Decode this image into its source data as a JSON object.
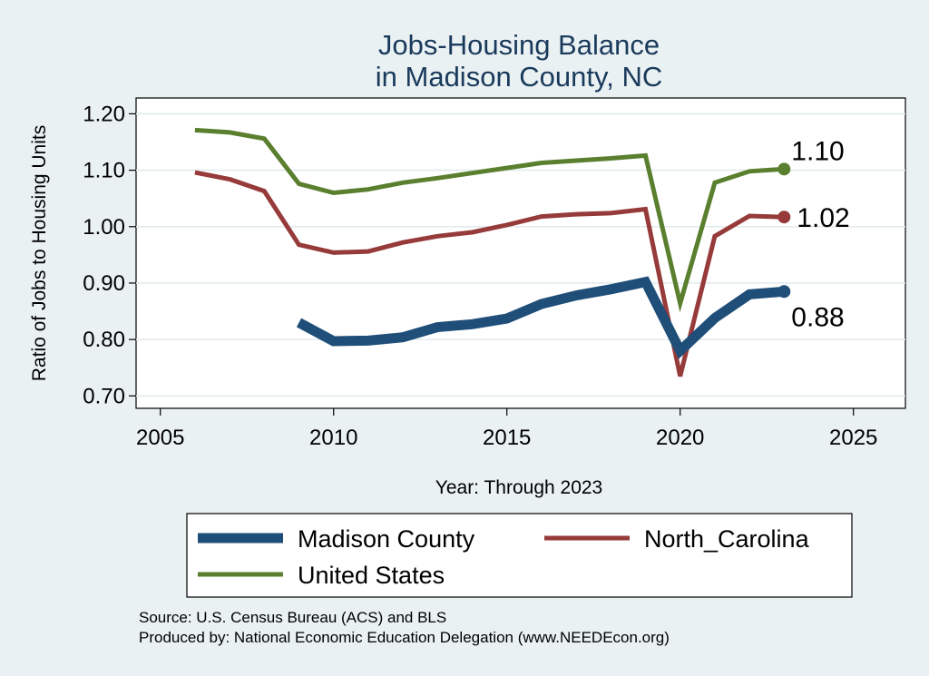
{
  "chart_data": {
    "type": "line",
    "title": [
      "Jobs-Housing Balance",
      "in Madison County, NC"
    ],
    "xlabel": "Year: Through 2023",
    "ylabel": "Ratio of Jobs to Housing Units",
    "xlim": [
      2004.3,
      2026.5
    ],
    "ylim": [
      0.678,
      1.228
    ],
    "xticks": [
      2005,
      2010,
      2015,
      2020,
      2025
    ],
    "yticks": [
      0.7,
      0.8,
      0.9,
      1.0,
      1.1,
      1.2
    ],
    "ytick_labels": [
      "0.70",
      "0.80",
      "0.90",
      "1.00",
      "1.10",
      "1.20"
    ],
    "grid": true,
    "series": [
      {
        "name": "Madison County",
        "color": "#1f4e79",
        "x": [
          2009,
          2010,
          2011,
          2012,
          2013,
          2014,
          2015,
          2016,
          2017,
          2018,
          2019,
          2020,
          2021,
          2022,
          2023
        ],
        "values": [
          0.83,
          0.797,
          0.798,
          0.804,
          0.822,
          0.827,
          0.837,
          0.863,
          0.878,
          0.889,
          0.902,
          0.78,
          0.838,
          0.88,
          0.885
        ],
        "end_label": "0.88"
      },
      {
        "name": "North_Carolina",
        "color": "#963a3a",
        "x": [
          2006,
          2007,
          2008,
          2009,
          2010,
          2011,
          2012,
          2013,
          2014,
          2015,
          2016,
          2017,
          2018,
          2019,
          2020,
          2021,
          2022,
          2023
        ],
        "values": [
          1.096,
          1.084,
          1.063,
          0.968,
          0.954,
          0.956,
          0.972,
          0.983,
          0.99,
          1.003,
          1.018,
          1.022,
          1.024,
          1.031,
          0.735,
          0.983,
          1.019,
          1.017
        ],
        "end_label": "1.02"
      },
      {
        "name": "United States",
        "color": "#5a7f2e",
        "x": [
          2006,
          2007,
          2008,
          2009,
          2010,
          2011,
          2012,
          2013,
          2014,
          2015,
          2016,
          2017,
          2018,
          2019,
          2020,
          2021,
          2022,
          2023
        ],
        "values": [
          1.171,
          1.167,
          1.156,
          1.076,
          1.06,
          1.066,
          1.078,
          1.086,
          1.095,
          1.104,
          1.113,
          1.117,
          1.121,
          1.126,
          0.864,
          1.078,
          1.098,
          1.102
        ],
        "end_label": "1.10"
      }
    ],
    "legend": [
      {
        "name": "Madison County"
      },
      {
        "name": "North_Carolina"
      },
      {
        "name": "United States"
      }
    ],
    "legend_position": "bottom"
  },
  "source": {
    "line1": "Source: U.S. Census Bureau (ACS) and BLS",
    "line2": "Produced by: National Economic Education Delegation (www.NEEDEcon.org)"
  }
}
